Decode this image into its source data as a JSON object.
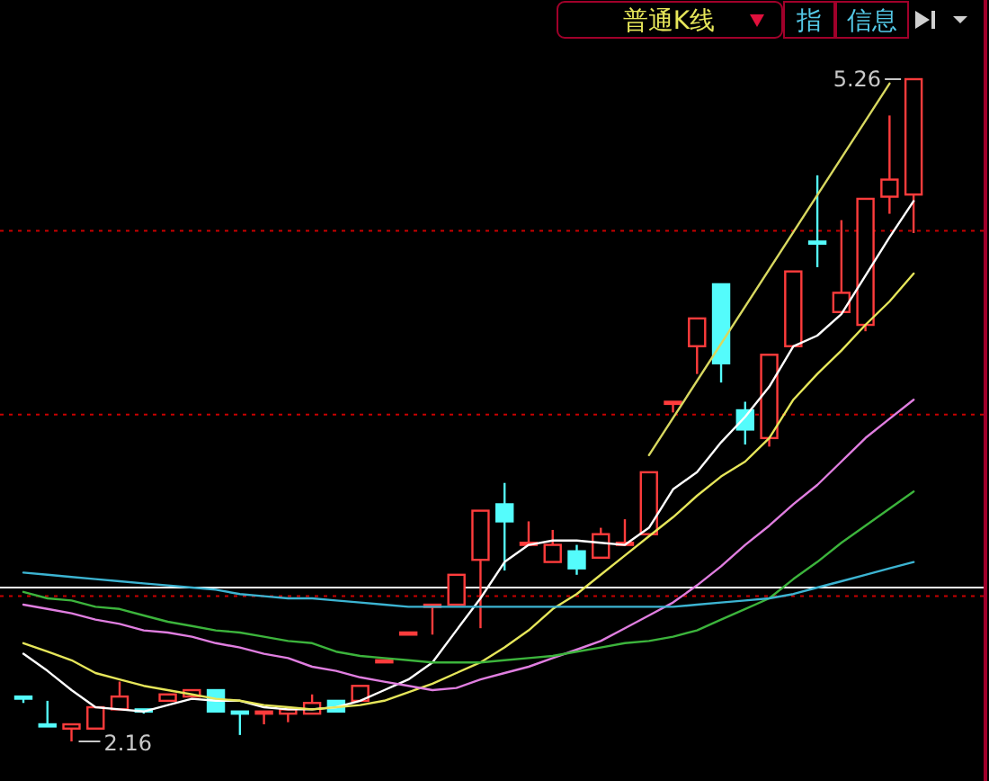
{
  "chart_data": {
    "type": "candlestick",
    "categories": [
      null,
      null,
      null,
      null,
      null,
      null,
      null,
      null,
      null,
      null,
      null,
      null,
      null,
      null,
      null,
      null,
      null,
      null,
      null,
      null,
      null,
      null,
      null,
      null,
      null,
      null,
      null,
      null,
      null,
      null,
      null,
      null,
      null,
      null,
      null,
      null,
      null,
      null
    ],
    "ohlc": [
      [
        2.37,
        2.37,
        2.34,
        2.36
      ],
      [
        2.24,
        2.35,
        2.24,
        2.24
      ],
      [
        2.22,
        2.24,
        2.16,
        2.24
      ],
      [
        2.22,
        2.32,
        2.22,
        2.32
      ],
      [
        2.31,
        2.44,
        2.31,
        2.37
      ],
      [
        2.31,
        2.31,
        2.29,
        2.3
      ],
      [
        2.35,
        2.38,
        2.35,
        2.38
      ],
      [
        2.37,
        2.4,
        2.37,
        2.4
      ],
      [
        2.4,
        2.4,
        2.3,
        2.3
      ],
      [
        2.3,
        2.3,
        2.19,
        2.29
      ],
      [
        2.29,
        2.3,
        2.24,
        2.3
      ],
      [
        2.29,
        2.31,
        2.25,
        2.31
      ],
      [
        2.29,
        2.38,
        2.29,
        2.34
      ],
      [
        2.35,
        2.35,
        2.3,
        2.3
      ],
      [
        2.35,
        2.42,
        2.35,
        2.42
      ],
      [
        2.54,
        2.54,
        2.54,
        2.54
      ],
      [
        2.67,
        2.67,
        2.67,
        2.67
      ],
      [
        2.8,
        2.8,
        2.66,
        2.8
      ],
      [
        2.8,
        2.94,
        2.8,
        2.94
      ],
      [
        3.01,
        3.24,
        2.69,
        3.24
      ],
      [
        3.27,
        3.37,
        2.96,
        3.19
      ],
      [
        3.09,
        3.19,
        3.09,
        3.09
      ],
      [
        3.0,
        3.15,
        3.0,
        3.08
      ],
      [
        3.05,
        3.08,
        2.94,
        2.97
      ],
      [
        3.02,
        3.16,
        3.02,
        3.13
      ],
      [
        3.09,
        3.2,
        3.09,
        3.09
      ],
      [
        3.13,
        3.42,
        3.13,
        3.42
      ],
      [
        3.75,
        3.75,
        3.7,
        3.75
      ],
      [
        4.01,
        4.14,
        3.88,
        4.14
      ],
      [
        4.3,
        4.3,
        3.84,
        3.93
      ],
      [
        3.71,
        3.75,
        3.55,
        3.62
      ],
      [
        3.58,
        3.97,
        3.54,
        3.97
      ],
      [
        4.01,
        4.36,
        4.01,
        4.36
      ],
      [
        4.5,
        4.81,
        4.38,
        4.5
      ],
      [
        4.17,
        4.6,
        4.17,
        4.26
      ],
      [
        4.11,
        4.7,
        4.08,
        4.7
      ],
      [
        4.71,
        5.09,
        4.63,
        4.79
      ],
      [
        4.72,
        5.26,
        4.54,
        5.26
      ]
    ],
    "colors": [
      "#54fcfc",
      "#54fcfc",
      "#ff3c3c",
      "#ff3c3c",
      "#ff3c3c",
      "#54fcfc",
      "#ff3c3c",
      "#ff3c3c",
      "#54fcfc",
      "#54fcfc",
      "#ff3c3c",
      "#ff3c3c",
      "#ff3c3c",
      "#54fcfc",
      "#ff3c3c",
      "#ff3c3c",
      "#ff3c3c",
      "#ff3c3c",
      "#ff3c3c",
      "#ff3c3c",
      "#54fcfc",
      "#ff3c3c",
      "#ff3c3c",
      "#54fcfc",
      "#ff3c3c",
      "#ff3c3c",
      "#ff3c3c",
      "#ff3c3c",
      "#ff3c3c",
      "#54fcfc",
      "#54fcfc",
      "#ff3c3c",
      "#ff3c3c",
      "#54fcfc",
      "#ff3c3c",
      "#ff3c3c",
      "#ff3c3c",
      "#ff3c3c"
    ],
    "series": [
      {
        "type": "line",
        "color": "#ffffff",
        "values": [
          2.57,
          2.49,
          2.4,
          2.32,
          2.31,
          2.3,
          2.33,
          2.36,
          2.35,
          2.35,
          2.32,
          2.31,
          2.31,
          2.32,
          2.35,
          2.4,
          2.45,
          2.53,
          2.68,
          2.83,
          3.0,
          3.08,
          3.1,
          3.1,
          3.09,
          3.08,
          3.16,
          3.34,
          3.42,
          3.56,
          3.68,
          3.82,
          4.01,
          4.06,
          4.16,
          4.34,
          4.52,
          4.69
        ]
      },
      {
        "type": "line",
        "color": "#e6e65a",
        "values": [
          2.62,
          2.58,
          2.54,
          2.48,
          2.45,
          2.42,
          2.4,
          2.38,
          2.36,
          2.35,
          2.33,
          2.32,
          2.31,
          2.32,
          2.33,
          2.35,
          2.39,
          2.43,
          2.48,
          2.53,
          2.6,
          2.68,
          2.78,
          2.85,
          2.94,
          3.03,
          3.12,
          3.21,
          3.31,
          3.4,
          3.47,
          3.58,
          3.76,
          3.88,
          3.99,
          4.11,
          4.22,
          4.35
        ]
      },
      {
        "type": "line",
        "color": "#e07ee0",
        "values": [
          2.8,
          2.78,
          2.76,
          2.73,
          2.71,
          2.68,
          2.67,
          2.65,
          2.62,
          2.6,
          2.57,
          2.55,
          2.51,
          2.49,
          2.46,
          2.44,
          2.42,
          2.4,
          2.41,
          2.45,
          2.48,
          2.51,
          2.55,
          2.59,
          2.63,
          2.69,
          2.75,
          2.81,
          2.89,
          2.98,
          3.08,
          3.17,
          3.27,
          3.36,
          3.47,
          3.58,
          3.67,
          3.76
        ]
      },
      {
        "type": "line",
        "color": "#3cb43c",
        "values": [
          2.86,
          2.83,
          2.82,
          2.79,
          2.78,
          2.75,
          2.72,
          2.7,
          2.68,
          2.67,
          2.65,
          2.63,
          2.62,
          2.58,
          2.56,
          2.55,
          2.54,
          2.53,
          2.53,
          2.53,
          2.54,
          2.55,
          2.56,
          2.58,
          2.6,
          2.62,
          2.63,
          2.65,
          2.68,
          2.73,
          2.78,
          2.83,
          2.92,
          3.0,
          3.09,
          3.17,
          3.25,
          3.33
        ]
      },
      {
        "type": "line",
        "color": "#3cb4d2",
        "values": [
          2.95,
          2.94,
          2.93,
          2.92,
          2.91,
          2.9,
          2.89,
          2.88,
          2.87,
          2.85,
          2.84,
          2.83,
          2.83,
          2.82,
          2.81,
          2.8,
          2.79,
          2.79,
          2.79,
          2.79,
          2.79,
          2.79,
          2.79,
          2.79,
          2.79,
          2.79,
          2.79,
          2.79,
          2.8,
          2.81,
          2.82,
          2.83,
          2.85,
          2.88,
          2.91,
          2.94,
          2.97,
          3.0
        ]
      },
      {
        "type": "line",
        "color": "#d8d860",
        "values": [
          null,
          null,
          null,
          null,
          null,
          null,
          null,
          null,
          null,
          null,
          null,
          null,
          null,
          null,
          null,
          null,
          null,
          null,
          null,
          null,
          null,
          null,
          null,
          null,
          null,
          null,
          3.5,
          null,
          null,
          null,
          null,
          null,
          null,
          null,
          null,
          null,
          5.24,
          null
        ]
      }
    ],
    "ref_lines": [
      {
        "axis": "y",
        "value": 2.88,
        "color": "#ffffff",
        "line_style": "solid"
      },
      {
        "axis": "y",
        "value": 2.84,
        "color": "#c80000",
        "line_style": "dotted"
      },
      {
        "axis": "y",
        "value": 3.69,
        "color": "#c80000",
        "line_style": "dotted"
      },
      {
        "axis": "y",
        "value": 4.55,
        "color": "#c80000",
        "line_style": "dotted"
      }
    ],
    "annotations": [
      "普通K线",
      "指",
      "信息",
      "5.26",
      "2.16"
    ]
  }
}
